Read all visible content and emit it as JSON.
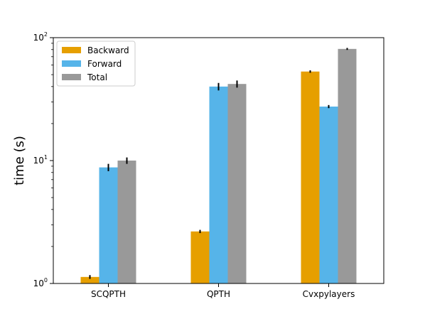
{
  "chart_data": {
    "type": "bar",
    "title": "",
    "xlabel": "",
    "ylabel": "time (s)",
    "yscale": "log",
    "ylim": [
      1,
      100
    ],
    "yticks": [
      {
        "value": 1,
        "base": "10",
        "exp": "0"
      },
      {
        "value": 10,
        "base": "10",
        "exp": "1"
      },
      {
        "value": 100,
        "base": "10",
        "exp": "2"
      }
    ],
    "categories": [
      "SCQPTH",
      "QPTH",
      "Cvxpylayers"
    ],
    "series": [
      {
        "name": "Backward",
        "color": "#e69f00",
        "values": [
          1.13,
          2.65,
          53
        ],
        "errors": [
          0.04,
          0.08,
          1.2
        ]
      },
      {
        "name": "Forward",
        "color": "#56b4e9",
        "values": [
          8.8,
          40,
          27.5
        ],
        "errors": [
          0.6,
          2.8,
          0.8
        ]
      },
      {
        "name": "Total",
        "color": "#999999",
        "values": [
          10,
          42,
          81
        ],
        "errors": [
          0.6,
          2.8,
          1.5
        ]
      }
    ],
    "legend_position": "top-left",
    "grid": false
  }
}
